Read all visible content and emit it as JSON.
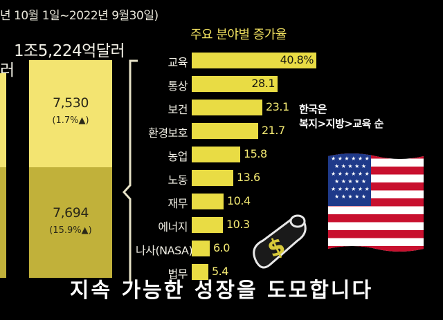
{
  "header": {
    "date_range": "년 10월 1일~2022년 9월30일)",
    "total_label": "1조5,224억달러",
    "left_cut_label": "러"
  },
  "stacked_column": {
    "top": {
      "value": "7,530",
      "change": "(1.7%",
      "arrow": "▲",
      "close": ")"
    },
    "bottom": {
      "value": "7,694",
      "change": "(15.9%",
      "arrow": "▲",
      "close": ")"
    }
  },
  "note": {
    "line1": "한국은",
    "line2": "복지>지방>교육 순"
  },
  "subtitle": "지속 가능한 성장을 도모합니다",
  "colors": {
    "bar": "#e9dc44",
    "column_top": "#f3e471",
    "column_bottom": "#c1b13a",
    "title": "#f0e060"
  },
  "chart_data": {
    "type": "bar",
    "orientation": "horizontal",
    "title": "주요 분야별 증가율",
    "categories": [
      "교육",
      "통상",
      "보건",
      "환경보호",
      "농업",
      "노동",
      "재무",
      "에너지",
      "나사(NASA)",
      "법무"
    ],
    "values": [
      40.8,
      28.1,
      23.1,
      21.7,
      15.8,
      13.6,
      10.4,
      10.3,
      6.0,
      5.4
    ],
    "value_labels": [
      "40.8%",
      "28.1",
      "23.1",
      "21.7",
      "15.8",
      "13.6",
      "10.4",
      "10.3",
      "6.0",
      "5.4"
    ],
    "xlim": [
      0,
      40.8
    ],
    "grid": false
  }
}
